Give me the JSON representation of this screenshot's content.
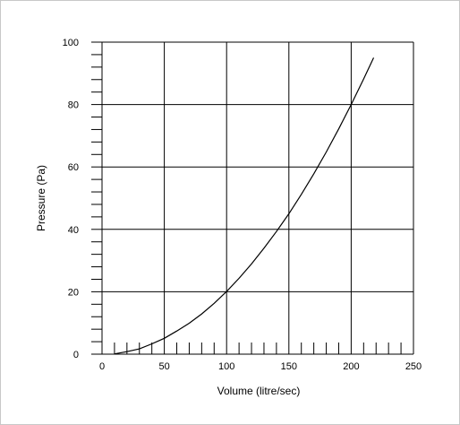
{
  "chart_data": {
    "type": "line",
    "title": "",
    "xlabel": "Volume (litre/sec)",
    "ylabel": "Pressure (Pa)",
    "xlim": [
      0,
      250
    ],
    "ylim": [
      0,
      100
    ],
    "x_ticks": [
      0,
      50,
      100,
      150,
      200,
      250
    ],
    "x_tick_labels": [
      "0",
      "50",
      "100",
      "150",
      "200",
      "250"
    ],
    "x_minor_step": 10,
    "y_ticks": [
      0,
      20,
      40,
      60,
      80,
      100
    ],
    "y_tick_labels": [
      "0",
      "20",
      "40",
      "60",
      "80",
      "100"
    ],
    "y_minor_step": 4,
    "grid": true,
    "line_color": "#000000",
    "series": [
      {
        "x": [
          10,
          20,
          30,
          40,
          50,
          60,
          70,
          80,
          90,
          100,
          110,
          120,
          130,
          140,
          150,
          160,
          170,
          180,
          190,
          200,
          210,
          218
        ],
        "values": [
          0.1,
          0.8,
          1.7,
          3.3,
          5.1,
          7.4,
          9.9,
          12.9,
          16.3,
          20.1,
          24.3,
          28.9,
          34.0,
          39.3,
          45.0,
          51.2,
          57.8,
          64.8,
          72.2,
          80.0,
          88.2,
          95.0
        ]
      }
    ]
  }
}
